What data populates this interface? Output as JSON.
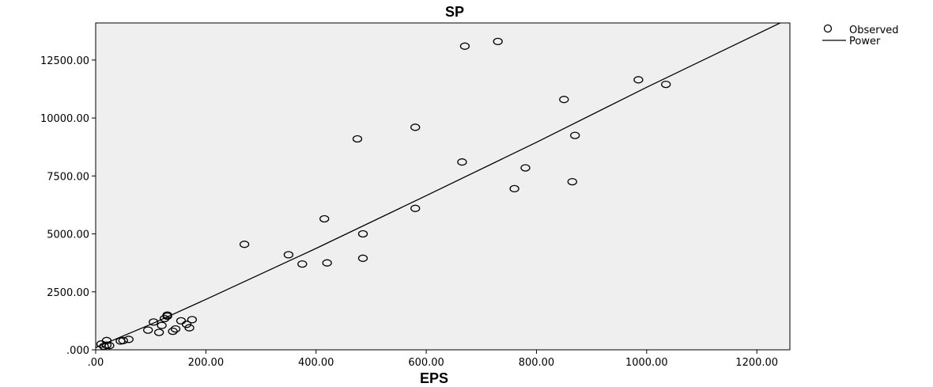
{
  "chart_data": {
    "type": "scatter",
    "title": "SP",
    "xlabel": "EPS",
    "ylabel": "",
    "xlim": [
      0,
      1260
    ],
    "ylim": [
      0,
      14100
    ],
    "x_ticks": [
      0,
      200,
      400,
      600,
      800,
      1000,
      1200
    ],
    "x_tick_labels": [
      ".00",
      "200.00",
      "400.00",
      "600.00",
      "800.00",
      "1000.00",
      "1200.00"
    ],
    "y_ticks": [
      0,
      2500,
      5000,
      7500,
      10000,
      12500
    ],
    "y_tick_labels": [
      ".000",
      "2500.00",
      "5000.00",
      "7500.00",
      "10000.00",
      "12500.00"
    ],
    "grid": false,
    "legend_position": "top-right, outside plot",
    "background_color": "#efefef",
    "marker_color": "#000000",
    "line_color": "#000000",
    "series": [
      {
        "name": "Observed",
        "marker": "open-circle",
        "points": [
          [
            10,
            250
          ],
          [
            15,
            150
          ],
          [
            20,
            400
          ],
          [
            20,
            200
          ],
          [
            25,
            180
          ],
          [
            45,
            380
          ],
          [
            50,
            400
          ],
          [
            60,
            450
          ],
          [
            95,
            850
          ],
          [
            105,
            1200
          ],
          [
            115,
            750
          ],
          [
            120,
            1050
          ],
          [
            125,
            1350
          ],
          [
            130,
            1500
          ],
          [
            130,
            1450
          ],
          [
            140,
            800
          ],
          [
            145,
            900
          ],
          [
            155,
            1250
          ],
          [
            165,
            1100
          ],
          [
            170,
            950
          ],
          [
            175,
            1300
          ],
          [
            270,
            4550
          ],
          [
            350,
            4100
          ],
          [
            375,
            3700
          ],
          [
            415,
            5650
          ],
          [
            420,
            3750
          ],
          [
            475,
            9100
          ],
          [
            485,
            5000
          ],
          [
            485,
            3950
          ],
          [
            580,
            9600
          ],
          [
            580,
            6100
          ],
          [
            665,
            8100
          ],
          [
            670,
            13100
          ],
          [
            730,
            13300
          ],
          [
            760,
            6950
          ],
          [
            780,
            7850
          ],
          [
            850,
            10800
          ],
          [
            865,
            7250
          ],
          [
            870,
            9250
          ],
          [
            985,
            11650
          ],
          [
            1035,
            11450
          ]
        ]
      },
      {
        "name": "Power",
        "type": "line",
        "points": [
          [
            0,
            100
          ],
          [
            100,
            1100
          ],
          [
            200,
            2175
          ],
          [
            400,
            4375
          ],
          [
            600,
            6650
          ],
          [
            800,
            8950
          ],
          [
            1000,
            11325
          ],
          [
            1260,
            14300
          ]
        ]
      }
    ]
  }
}
